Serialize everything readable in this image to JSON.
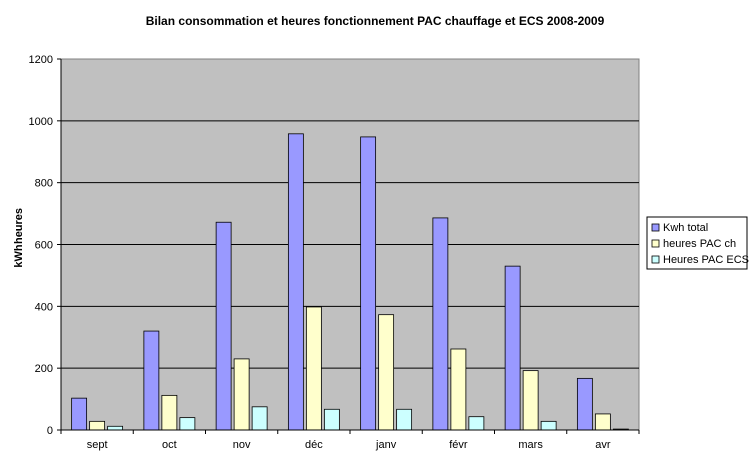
{
  "chart_data": {
    "type": "bar",
    "title": "Bilan consommation et heures fonctionnement  PAC chauffage et ECS 2008-2009",
    "ylabel_left": "kWh",
    "ylabel_right": "heures",
    "ylim": [
      0,
      1200
    ],
    "yticks": [
      0,
      200,
      400,
      600,
      800,
      1000,
      1200
    ],
    "categories": [
      "sept",
      "oct",
      "nov",
      "déc",
      "janv",
      "févr",
      "mars",
      "avr"
    ],
    "series": [
      {
        "name": "Kwh total",
        "color": "#9999FF",
        "values": [
          103,
          320,
          672,
          958,
          948,
          686,
          530,
          167
        ]
      },
      {
        "name": "heures PAC ch",
        "color": "#FFFFCC",
        "values": [
          28,
          112,
          230,
          398,
          373,
          262,
          192,
          52
        ]
      },
      {
        "name": "Heures PAC ECS",
        "color": "#CCFFFF",
        "values": [
          12,
          40,
          75,
          67,
          67,
          43,
          28,
          3
        ]
      }
    ],
    "plot_background": "#C0C0C0",
    "grid": true,
    "legend_position": "right"
  }
}
